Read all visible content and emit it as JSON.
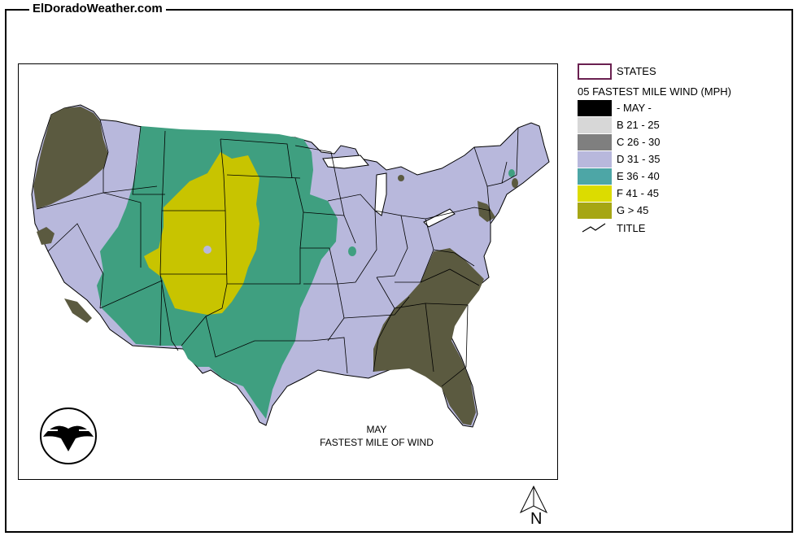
{
  "site_title": "ElDoradoWeather.com",
  "legend": {
    "states_label": "STATES",
    "heading": "05 FASTEST MILE WIND (MPH)",
    "items": [
      {
        "label": "- MAY -",
        "color": "#000000"
      },
      {
        "label": "B 21 - 25",
        "color": "#d7d7d7"
      },
      {
        "label": "C 26 - 30",
        "color": "#7f7f7f"
      },
      {
        "label": "D 31 - 35",
        "color": "#b8b8dc"
      },
      {
        "label": "E 36 - 40",
        "color": "#4da6a6"
      },
      {
        "label": "F 41 - 45",
        "color": "#dcdc00"
      },
      {
        "label": "G > 45",
        "color": "#a6a614"
      }
    ],
    "title_label": "TITLE"
  },
  "map": {
    "title_line1": "MAY",
    "title_line2": "FASTEST MILE OF WIND",
    "colors": {
      "purple": "#b8b8dc",
      "green": "#3f9f80",
      "yellow": "#c8c400",
      "olive": "#5b5a40",
      "border": "#000000"
    }
  },
  "compass": {
    "letter": "N"
  }
}
